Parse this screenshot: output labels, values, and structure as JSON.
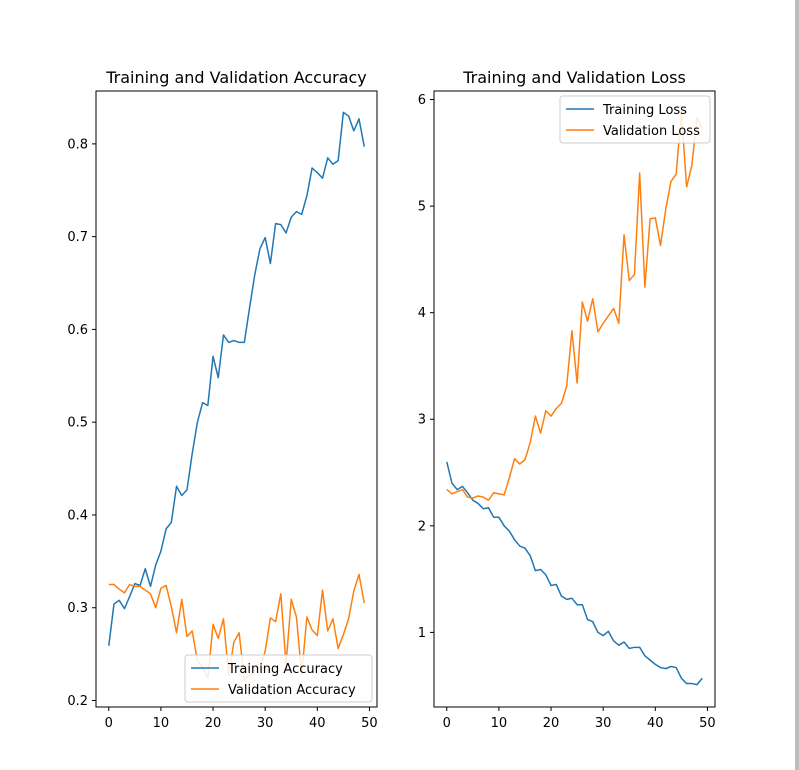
{
  "chart_data": [
    {
      "type": "line",
      "title": "Training and Validation Accuracy",
      "xlabel": "",
      "ylabel": "",
      "xlim": [
        -2.45,
        51.45
      ],
      "ylim": [
        0.193,
        0.857
      ],
      "xticks": [
        0,
        10,
        20,
        30,
        40,
        50
      ],
      "yticks": [
        0.2,
        0.3,
        0.4,
        0.5,
        0.6,
        0.7,
        0.8
      ],
      "ytick_labels": [
        "0.2",
        "0.3",
        "0.4",
        "0.5",
        "0.6",
        "0.7",
        "0.8"
      ],
      "grid": false,
      "legend_position": "lower right",
      "x": [
        0,
        1,
        2,
        3,
        4,
        5,
        6,
        7,
        8,
        9,
        10,
        11,
        12,
        13,
        14,
        15,
        16,
        17,
        18,
        19,
        20,
        21,
        22,
        23,
        24,
        25,
        26,
        27,
        28,
        29,
        30,
        31,
        32,
        33,
        34,
        35,
        36,
        37,
        38,
        39,
        40,
        41,
        42,
        43,
        44,
        45,
        46,
        47,
        48,
        49
      ],
      "series": [
        {
          "name": "Training Accuracy",
          "color": "#1f77b4",
          "values": [
            0.259,
            0.304,
            0.308,
            0.299,
            0.312,
            0.326,
            0.324,
            0.342,
            0.323,
            0.346,
            0.361,
            0.385,
            0.392,
            0.431,
            0.421,
            0.427,
            0.466,
            0.5,
            0.521,
            0.518,
            0.571,
            0.548,
            0.594,
            0.586,
            0.588,
            0.586,
            0.586,
            0.623,
            0.659,
            0.687,
            0.699,
            0.671,
            0.714,
            0.713,
            0.704,
            0.721,
            0.727,
            0.724,
            0.744,
            0.774,
            0.769,
            0.763,
            0.785,
            0.778,
            0.782,
            0.834,
            0.83,
            0.814,
            0.827,
            0.797
          ]
        },
        {
          "name": "Validation Accuracy",
          "color": "#ff7f0e",
          "values": [
            0.325,
            0.325,
            0.32,
            0.316,
            0.325,
            0.323,
            0.323,
            0.319,
            0.315,
            0.3,
            0.321,
            0.324,
            0.301,
            0.273,
            0.309,
            0.269,
            0.275,
            0.243,
            0.236,
            0.224,
            0.282,
            0.267,
            0.288,
            0.227,
            0.263,
            0.273,
            0.223,
            0.227,
            0.233,
            0.236,
            0.253,
            0.289,
            0.285,
            0.315,
            0.239,
            0.309,
            0.29,
            0.228,
            0.29,
            0.276,
            0.27,
            0.319,
            0.275,
            0.288,
            0.256,
            0.271,
            0.288,
            0.318,
            0.336,
            0.305
          ]
        }
      ]
    },
    {
      "type": "line",
      "title": "Training and Validation Loss",
      "xlabel": "",
      "ylabel": "",
      "xlim": [
        -2.45,
        51.45
      ],
      "ylim": [
        0.3,
        6.08
      ],
      "xticks": [
        0,
        10,
        20,
        30,
        40,
        50
      ],
      "yticks": [
        1,
        2,
        3,
        4,
        5,
        6
      ],
      "ytick_labels": [
        "1",
        "2",
        "3",
        "4",
        "5",
        "6"
      ],
      "grid": false,
      "legend_position": "upper right",
      "x": [
        0,
        1,
        2,
        3,
        4,
        5,
        6,
        7,
        8,
        9,
        10,
        11,
        12,
        13,
        14,
        15,
        16,
        17,
        18,
        19,
        20,
        21,
        22,
        23,
        24,
        25,
        26,
        27,
        28,
        29,
        30,
        31,
        32,
        33,
        34,
        35,
        36,
        37,
        38,
        39,
        40,
        41,
        42,
        43,
        44,
        45,
        46,
        47,
        48,
        49
      ],
      "series": [
        {
          "name": "Training Loss",
          "color": "#1f77b4",
          "values": [
            2.6,
            2.4,
            2.34,
            2.37,
            2.31,
            2.24,
            2.21,
            2.16,
            2.17,
            2.08,
            2.08,
            2.0,
            1.95,
            1.87,
            1.81,
            1.79,
            1.72,
            1.58,
            1.59,
            1.54,
            1.44,
            1.45,
            1.34,
            1.31,
            1.32,
            1.26,
            1.26,
            1.12,
            1.1,
            1.0,
            0.97,
            1.01,
            0.92,
            0.88,
            0.91,
            0.85,
            0.86,
            0.86,
            0.78,
            0.74,
            0.7,
            0.67,
            0.66,
            0.68,
            0.67,
            0.57,
            0.52,
            0.52,
            0.51,
            0.57
          ]
        },
        {
          "name": "Validation Loss",
          "color": "#ff7f0e",
          "values": [
            2.34,
            2.3,
            2.32,
            2.34,
            2.27,
            2.26,
            2.28,
            2.27,
            2.24,
            2.31,
            2.3,
            2.29,
            2.45,
            2.63,
            2.58,
            2.62,
            2.78,
            3.03,
            2.87,
            3.08,
            3.03,
            3.1,
            3.15,
            3.31,
            3.83,
            3.34,
            4.1,
            3.92,
            4.13,
            3.82,
            3.9,
            3.97,
            4.04,
            3.9,
            4.73,
            4.3,
            4.36,
            5.31,
            4.24,
            4.88,
            4.89,
            4.63,
            4.97,
            5.23,
            5.3,
            5.89,
            5.18,
            5.38,
            5.83,
            5.72
          ]
        }
      ]
    }
  ]
}
